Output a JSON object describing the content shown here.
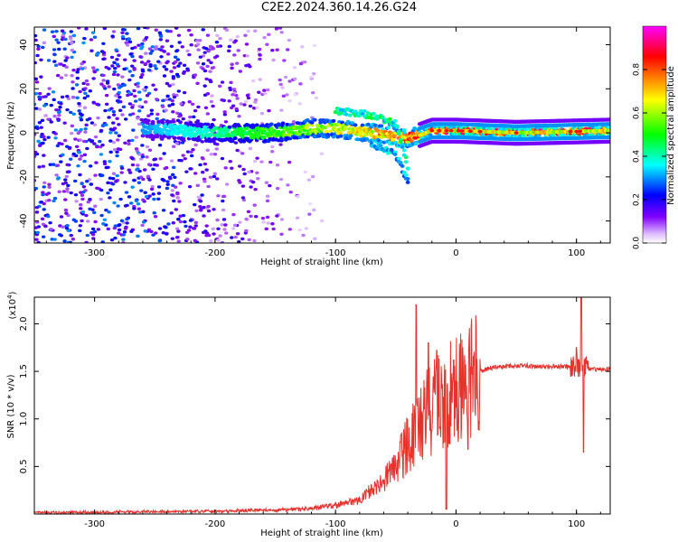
{
  "title": "C2E2.2024.360.14.26.G24",
  "chart_data": [
    {
      "type": "heatmap",
      "xlabel": "Height of straight line (km)",
      "ylabel": "Frequency (Hz)",
      "xlim": [
        -350,
        128
      ],
      "ylim": [
        -50,
        48
      ],
      "x_ticks": [
        -300,
        -200,
        -100,
        0,
        100
      ],
      "y_ticks": [
        -40,
        -20,
        0,
        20,
        40
      ],
      "colorbar": {
        "label": "Normalized spectral amplitude",
        "range": [
          0,
          1
        ],
        "ticks": [
          "0.0",
          "0.2",
          "0.4",
          "0.6",
          "0.8"
        ],
        "colors": [
          "#ffffff",
          "#8000ff",
          "#0000ff",
          "#00ffff",
          "#00ff00",
          "#ffff00",
          "#ff8000",
          "#ff0000",
          "#ff00ff"
        ]
      },
      "features": [
        {
          "name": "scattered noise",
          "x_range": [
            -350,
            -110
          ],
          "y_range": [
            -50,
            48
          ],
          "amplitude": 0.15
        },
        {
          "name": "main trace",
          "points": [
            [
              -260,
              2
            ],
            [
              -200,
              0
            ],
            [
              -150,
              0
            ],
            [
              -120,
              2
            ],
            [
              -100,
              2
            ],
            [
              -70,
              0
            ],
            [
              -40,
              -3
            ],
            [
              -20,
              1
            ],
            [
              0,
              1
            ],
            [
              50,
              0
            ],
            [
              128,
              1
            ]
          ],
          "amplitude": [
            0.3,
            0.9
          ]
        },
        {
          "name": "upper branch",
          "points": [
            [
              -100,
              10
            ],
            [
              -70,
              8
            ],
            [
              -50,
              4
            ],
            [
              -40,
              -15
            ]
          ],
          "amplitude": 0.5
        },
        {
          "name": "lower branch",
          "points": [
            [
              -70,
              -5
            ],
            [
              -50,
              -10
            ],
            [
              -40,
              -22
            ]
          ],
          "amplitude": 0.4
        }
      ]
    },
    {
      "type": "line",
      "xlabel": "Height of straight line (km)",
      "ylabel": "SNR (10 * v/v)",
      "y_multiplier": "(x10",
      "y_multiplier_exp": "4",
      "y_multiplier_close": ")",
      "xlim": [
        -350,
        128
      ],
      "ylim": [
        0,
        22800
      ],
      "x_ticks": [
        -300,
        -200,
        -100,
        0,
        100
      ],
      "y_ticks": [
        "0.5",
        "1.0",
        "1.5",
        "2.0"
      ],
      "y_tick_values": [
        5000,
        10000,
        15000,
        20000
      ],
      "series": [
        {
          "color": "#e8312b",
          "x": [
            -350,
            -300,
            -250,
            -200,
            -150,
            -120,
            -100,
            -80,
            -70,
            -60,
            -50,
            -45,
            -40,
            -35,
            -30,
            -25,
            -20,
            -15,
            -10,
            -5,
            0,
            10,
            20,
            30,
            40,
            50,
            60,
            70,
            80,
            90,
            95,
            100,
            102,
            105,
            110,
            120,
            128
          ],
          "y": [
            150,
            180,
            250,
            300,
            400,
            600,
            900,
            1500,
            2500,
            3500,
            5000,
            6000,
            7500,
            8500,
            9000,
            10500,
            11000,
            11800,
            12000,
            12500,
            13000,
            14000,
            15000,
            15400,
            15500,
            15600,
            15600,
            15500,
            15500,
            15500,
            15400,
            15500,
            15500,
            15400,
            15300,
            15200,
            15200
          ]
        }
      ],
      "spikes": [
        {
          "x": -33,
          "y": 22000
        },
        {
          "x": -23,
          "y": 18000
        },
        {
          "x": -16,
          "y": 17200
        },
        {
          "x": -8,
          "y": 500
        },
        {
          "x": -2,
          "y": 16200
        },
        {
          "x": 10,
          "y": 6800
        },
        {
          "x": 100,
          "y": 17500
        },
        {
          "x": 104,
          "y": 23000
        },
        {
          "x": 106,
          "y": 6500
        }
      ]
    }
  ]
}
